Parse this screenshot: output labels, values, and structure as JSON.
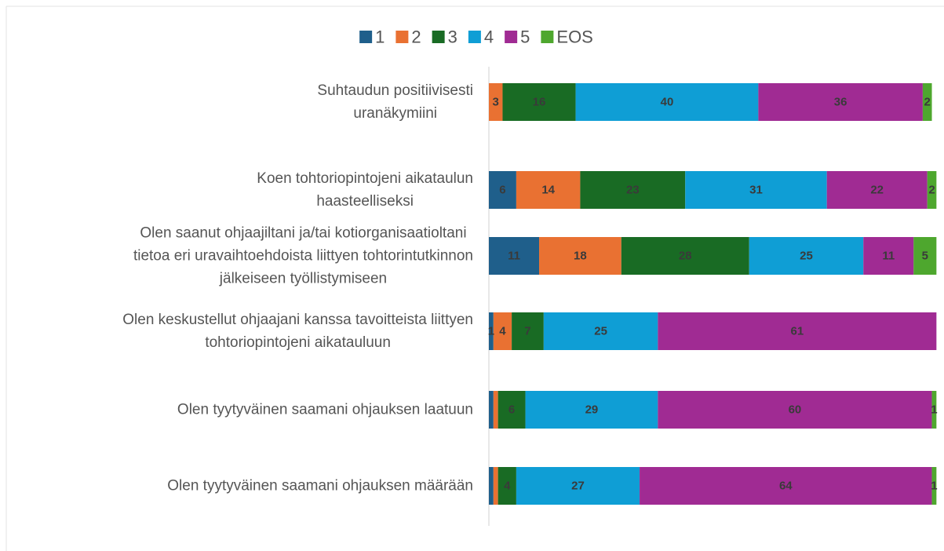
{
  "chart_data": {
    "type": "stacked_barh",
    "categories": [
      "Suhtaudun positiivisesti\nuranäkymiini",
      "Koen tohtoriopintojeni aikataulun\nhaasteelliseksi",
      "Olen saanut ohjaajiltani ja/tai kotiorganisaatioltani\ntietoa eri uravaihtoehdoista liittyen tohtorintutkinnon\njälkeiseen työllistymiseen",
      "Olen keskustellut ohjaajani kanssa tavoitteista liittyen\ntohtoriopintojeni aikatauluun",
      "Olen tyytyväinen saamani ohjauksen laatuun",
      "Olen tyytyväinen saamani ohjauksen määrään"
    ],
    "series": [
      {
        "name": "1",
        "color": "#1f5f8b",
        "values": [
          0,
          6,
          11,
          1,
          1,
          1
        ],
        "value_labels": [
          null,
          "6",
          "11",
          "1",
          null,
          null
        ]
      },
      {
        "name": "2",
        "color": "#e97132",
        "values": [
          3,
          14,
          18,
          4,
          1,
          1
        ],
        "value_labels": [
          "3",
          "14",
          "18",
          "4",
          null,
          null
        ]
      },
      {
        "name": "3",
        "color": "#196b24",
        "values": [
          16,
          23,
          28,
          7,
          6,
          4
        ],
        "value_labels": [
          "16",
          "23",
          "28",
          "7",
          "6",
          "4"
        ]
      },
      {
        "name": "4",
        "color": "#0f9ed5",
        "values": [
          40,
          31,
          25,
          25,
          29,
          27
        ],
        "value_labels": [
          "40",
          "31",
          "25",
          "25",
          "29",
          "27"
        ]
      },
      {
        "name": "5",
        "color": "#a02b93",
        "values": [
          36,
          22,
          11,
          61,
          60,
          64
        ],
        "value_labels": [
          "36",
          "22",
          "11",
          "61",
          "60",
          "64"
        ]
      },
      {
        "name": "EOS",
        "color": "#4ea72e",
        "values": [
          2,
          2,
          5,
          0,
          1,
          1
        ],
        "value_labels": [
          "2",
          "2",
          "5",
          null,
          "1",
          "1"
        ]
      }
    ],
    "xlim": [
      0,
      100
    ],
    "legend": "top"
  }
}
